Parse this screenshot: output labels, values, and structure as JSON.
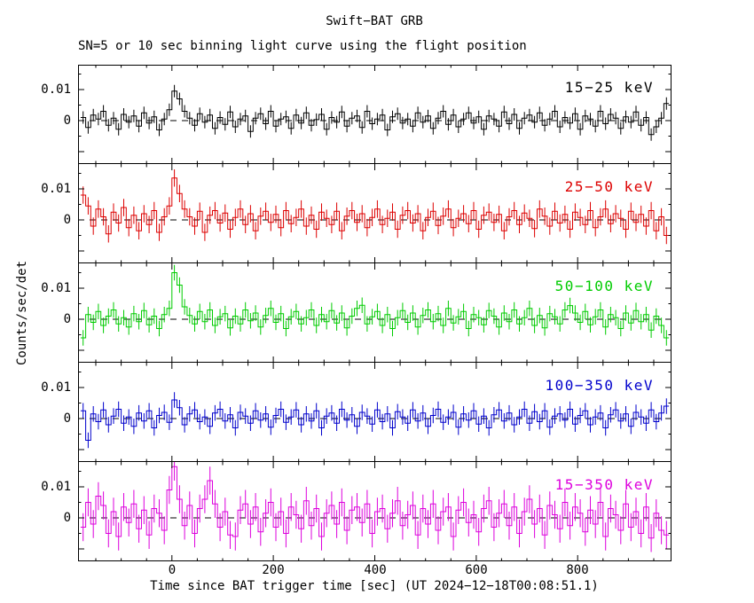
{
  "title": "Swift−BAT GRB",
  "subtitle": "SN=5 or 10 sec binning light curve using the flight position",
  "ylabel": "Counts/sec/det",
  "xlabel": "Time since BAT trigger time [sec] (UT 2024−12−18T00:08:51.1)",
  "chart_data": {
    "type": "line",
    "style": "step-histogram-with-errorbars",
    "x_start": -175,
    "x_step": 10,
    "bin_half_width": 5,
    "xlim": [
      -185,
      985
    ],
    "ylim": [
      -0.014,
      0.018
    ],
    "x_ticks": [
      0,
      200,
      400,
      600,
      800
    ],
    "x_tick_labels": [
      "0",
      "200",
      "400",
      "600",
      "800"
    ],
    "y_ticks": [
      0.01,
      0
    ],
    "y_tick_labels": [
      "0.01",
      "0"
    ],
    "value_scale": 0.0001,
    "zero_line": "dashed",
    "grid": false,
    "legend_position": "inside-top-right-per-panel",
    "series": [
      {
        "name": "15−25 keV",
        "color": "#000000",
        "err": 20,
        "values": [
          10,
          -22,
          18,
          5,
          30,
          -15,
          8,
          -28,
          20,
          -5,
          15,
          -18,
          25,
          -8,
          12,
          -30,
          5,
          35,
          95,
          70,
          30,
          8,
          -15,
          22,
          -5,
          18,
          -25,
          10,
          -12,
          28,
          -20,
          5,
          15,
          -35,
          8,
          22,
          -10,
          30,
          -18,
          5,
          12,
          -25,
          18,
          -8,
          25,
          -15,
          3,
          20,
          -28,
          10,
          -5,
          28,
          -18,
          8,
          15,
          -22,
          30,
          -10,
          5,
          18,
          -30,
          12,
          22,
          -8,
          5,
          -18,
          25,
          -5,
          15,
          -25,
          8,
          30,
          -12,
          18,
          -20,
          5,
          25,
          -8,
          12,
          -28,
          15,
          5,
          -18,
          28,
          -10,
          20,
          -25,
          8,
          18,
          -5,
          25,
          -15,
          5,
          30,
          -20,
          10,
          -8,
          22,
          -28,
          15,
          5,
          -18,
          30,
          -10,
          20,
          8,
          -25,
          12,
          -5,
          28,
          -15,
          10,
          -45,
          -20,
          8,
          55
        ]
      },
      {
        "name": "25−50 keV",
        "color": "#dd0000",
        "err": 28,
        "values": [
          80,
          45,
          -20,
          35,
          10,
          -45,
          25,
          -10,
          40,
          -25,
          15,
          -35,
          20,
          -15,
          30,
          -40,
          10,
          45,
          135,
          85,
          35,
          10,
          -20,
          28,
          -40,
          15,
          30,
          -10,
          22,
          -30,
          8,
          35,
          -15,
          20,
          -35,
          12,
          28,
          -8,
          18,
          -25,
          30,
          -12,
          8,
          35,
          -20,
          15,
          -30,
          25,
          5,
          -15,
          28,
          -35,
          12,
          30,
          -8,
          20,
          -25,
          8,
          35,
          -15,
          5,
          25,
          -30,
          15,
          30,
          -10,
          20,
          -35,
          8,
          28,
          -18,
          12,
          35,
          -25,
          5,
          20,
          -12,
          30,
          -30,
          15,
          25,
          -8,
          18,
          -35,
          10,
          30,
          -15,
          22,
          5,
          -28,
          35,
          12,
          -20,
          28,
          -10,
          18,
          -30,
          25,
          8,
          -15,
          30,
          -25,
          10,
          35,
          -12,
          20,
          5,
          -30,
          28,
          -8,
          18,
          -20,
          30,
          -35,
          10,
          -50
        ]
      },
      {
        "name": "50−100 keV",
        "color": "#00cc00",
        "err": 25,
        "values": [
          -60,
          15,
          -10,
          25,
          -20,
          10,
          30,
          -15,
          5,
          -25,
          18,
          -8,
          28,
          -18,
          10,
          -30,
          15,
          35,
          150,
          110,
          40,
          12,
          -15,
          25,
          -8,
          30,
          -20,
          8,
          18,
          -28,
          10,
          -15,
          30,
          -5,
          20,
          -25,
          12,
          35,
          -10,
          18,
          -30,
          8,
          25,
          -15,
          5,
          30,
          -20,
          15,
          -8,
          28,
          -12,
          20,
          -28,
          10,
          35,
          45,
          -15,
          8,
          25,
          -20,
          15,
          -30,
          5,
          28,
          -10,
          20,
          -25,
          12,
          30,
          -8,
          18,
          -20,
          35,
          -12,
          8,
          25,
          -30,
          15,
          5,
          -18,
          28,
          10,
          -25,
          20,
          -8,
          30,
          -15,
          5,
          35,
          -20,
          12,
          -28,
          18,
          8,
          -15,
          30,
          44,
          20,
          -10,
          25,
          -18,
          8,
          30,
          -25,
          15,
          5,
          -30,
          20,
          -12,
          28,
          -8,
          15,
          -35,
          10,
          -20,
          -60
        ]
      },
      {
        "name": "100−350 keV",
        "color": "#0000cc",
        "err": 25,
        "values": [
          25,
          -70,
          15,
          -10,
          28,
          -20,
          8,
          30,
          -15,
          5,
          -25,
          18,
          -8,
          25,
          -30,
          10,
          20,
          -12,
          60,
          35,
          -20,
          15,
          28,
          -10,
          5,
          -25,
          18,
          30,
          -8,
          12,
          -30,
          20,
          8,
          -15,
          25,
          -5,
          15,
          -28,
          10,
          30,
          -12,
          5,
          28,
          -20,
          15,
          -8,
          25,
          -30,
          8,
          18,
          -15,
          30,
          -5,
          12,
          -25,
          20,
          8,
          -18,
          28,
          -10,
          15,
          -30,
          22,
          5,
          -15,
          28,
          -8,
          18,
          -25,
          10,
          30,
          -12,
          5,
          20,
          -28,
          15,
          -5,
          25,
          -18,
          8,
          -30,
          12,
          28,
          -8,
          18,
          -20,
          5,
          30,
          -15,
          22,
          -10,
          25,
          -28,
          8,
          15,
          -5,
          30,
          -18,
          10,
          25,
          -20,
          5,
          18,
          -30,
          12,
          28,
          -8,
          15,
          -25,
          20,
          5,
          -15,
          28,
          -10,
          18,
          40
        ]
      },
      {
        "name": "15−350 keV",
        "color": "#dd00dd",
        "err": 45,
        "values": [
          -30,
          50,
          -20,
          70,
          40,
          -50,
          20,
          -60,
          35,
          -15,
          45,
          -35,
          25,
          -55,
          30,
          15,
          -40,
          90,
          165,
          60,
          -25,
          40,
          -50,
          30,
          60,
          120,
          45,
          -30,
          20,
          -55,
          -60,
          25,
          45,
          -20,
          35,
          -45,
          15,
          50,
          -30,
          20,
          -50,
          35,
          10,
          -35,
          55,
          -25,
          30,
          -60,
          15,
          40,
          -20,
          50,
          -40,
          25,
          35,
          -15,
          45,
          -50,
          20,
          30,
          -35,
          15,
          55,
          -25,
          10,
          40,
          -55,
          30,
          -20,
          45,
          -40,
          20,
          35,
          -60,
          25,
          50,
          -15,
          10,
          -45,
          30,
          55,
          -30,
          15,
          45,
          -25,
          35,
          -50,
          20,
          60,
          -20,
          30,
          -55,
          40,
          10,
          -35,
          50,
          -25,
          35,
          15,
          -45,
          25,
          -20,
          50,
          -60,
          30,
          10,
          -40,
          45,
          -30,
          20,
          -50,
          35,
          -65,
          15,
          -40,
          -55
        ]
      }
    ]
  }
}
